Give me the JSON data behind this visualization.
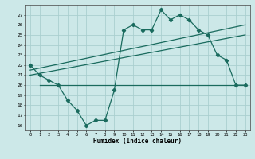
{
  "x": [
    0,
    1,
    2,
    3,
    4,
    5,
    6,
    7,
    8,
    9,
    10,
    11,
    12,
    13,
    14,
    15,
    16,
    17,
    18,
    19,
    20,
    21,
    22,
    23
  ],
  "y_main": [
    22,
    21,
    20.5,
    20,
    18.5,
    17.5,
    16,
    16.5,
    16.5,
    19.5,
    25.5,
    26,
    25.5,
    25.5,
    27.5,
    26.5,
    27,
    26.5,
    25.5,
    25,
    23,
    22.5,
    20,
    20
  ],
  "line1_x": [
    0,
    23
  ],
  "line1_y": [
    21.5,
    26.0
  ],
  "line2_x": [
    0,
    23
  ],
  "line2_y": [
    21.0,
    25.0
  ],
  "hline_y": 20,
  "hline_x": [
    1,
    23
  ],
  "ylim": [
    15.5,
    28
  ],
  "xlim": [
    -0.5,
    23.5
  ],
  "yticks": [
    16,
    17,
    18,
    19,
    20,
    21,
    22,
    23,
    24,
    25,
    26,
    27
  ],
  "xticks": [
    0,
    1,
    2,
    3,
    4,
    5,
    6,
    7,
    8,
    9,
    10,
    11,
    12,
    13,
    14,
    15,
    16,
    17,
    18,
    19,
    20,
    21,
    22,
    23
  ],
  "xlabel": "Humidex (Indice chaleur)",
  "color": "#1a6b5e",
  "bg_color": "#cce8e8",
  "grid_color": "#aacfcf"
}
